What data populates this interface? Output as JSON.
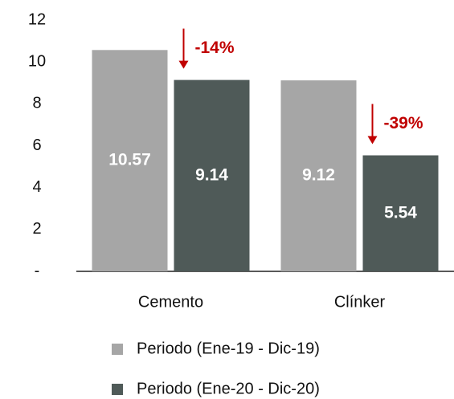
{
  "chart_data": {
    "type": "bar",
    "categories": [
      "Cemento",
      "Clínker"
    ],
    "series": [
      {
        "name": "Periodo (Ene-19 - Dic-19)",
        "color": "#a6a6a6",
        "values": [
          10.57,
          9.12
        ]
      },
      {
        "name": "Periodo (Ene-20 - Dic-20)",
        "color": "#4f5a58",
        "values": [
          9.14,
          5.54
        ]
      }
    ],
    "ylim": [
      0,
      12
    ],
    "yticks": [
      {
        "value": 0,
        "label": "-"
      },
      2,
      4,
      6,
      8,
      10,
      12
    ],
    "annotations": [
      {
        "text": "-14%",
        "color": "#c00000"
      },
      {
        "text": "-39%",
        "color": "#c00000"
      }
    ],
    "legend": "bottom"
  }
}
